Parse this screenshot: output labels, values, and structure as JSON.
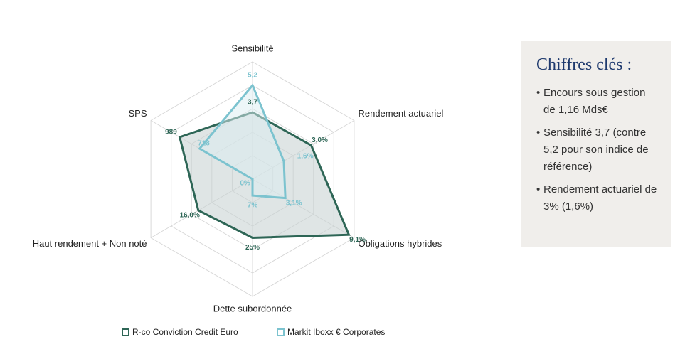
{
  "chart_data": {
    "type": "radar",
    "axes": [
      {
        "label": "Sensibilité",
        "lim": [
          0,
          6.5
        ]
      },
      {
        "label": "Rendement actuariel",
        "lim": [
          0,
          5.2
        ]
      },
      {
        "label": "Obligations hybrides",
        "lim": [
          0,
          9.6
        ]
      },
      {
        "label": "Dette subordonnée",
        "lim": [
          0,
          50
        ]
      },
      {
        "label": "Haut rendement + Non noté",
        "lim": [
          0,
          30
        ]
      },
      {
        "label": "SPS",
        "lim": [
          0,
          1380
        ]
      }
    ],
    "series": [
      {
        "name": "R-co Conviction Credit Euro",
        "color": "#2e6656",
        "fill": "#c9d3d3",
        "values": [
          3.7,
          3.0,
          9.1,
          25,
          16.0,
          989
        ],
        "value_labels": [
          "3,7",
          "3,0%",
          "9,1%",
          "25%",
          "16,0%",
          "989"
        ]
      },
      {
        "name": "Markit Iboxx €  Corporates",
        "color": "#7cc3cf",
        "fill": "#dbeef1",
        "values": [
          5.2,
          1.6,
          3.1,
          7,
          0,
          718
        ],
        "value_labels": [
          "5,2",
          "1,6%",
          "3,1%",
          "7%",
          "0%",
          "718"
        ]
      }
    ]
  },
  "panel": {
    "title": "Chiffres clés :",
    "items": [
      "Encours sous gestion de 1,16 Mds€",
      "Sensibilité 3,7 (contre 5,2 pour son indice de référence)",
      "Rendement actuariel de 3% (1,6%)"
    ]
  }
}
